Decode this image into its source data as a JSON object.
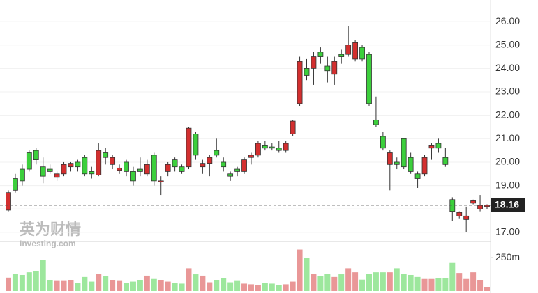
{
  "chart_data": {
    "type": "candlestick",
    "watermark": {
      "title": "英为财情",
      "subtitle": "Investing.com"
    },
    "open": [
      17.95,
      19.3,
      19.7,
      20.4,
      20.5,
      19.8,
      19.7,
      19.35,
      19.5,
      19.8,
      20.0,
      20.2,
      19.6,
      19.45,
      20.4,
      19.9,
      19.65,
      20.0,
      19.6,
      19.7,
      19.5,
      20.3,
      19.15,
      19.6,
      20.1,
      19.8,
      19.8,
      21.2,
      19.8,
      19.95,
      20.5,
      20.0,
      19.5,
      19.7,
      19.6,
      20.2,
      20.3,
      20.7,
      20.65,
      20.6,
      20.5,
      21.2,
      22.5,
      24.0,
      24.0,
      24.7,
      24.1,
      23.75,
      24.6,
      24.6,
      24.4,
      24.9,
      24.6,
      21.8,
      21.1,
      19.9,
      20.0,
      21.0,
      20.2,
      19.5,
      19.5,
      20.6,
      20.8,
      20.2,
      18.4,
      17.7,
      17.55,
      18.25,
      18.0,
      18.1
    ],
    "high": [
      18.8,
      19.5,
      19.9,
      20.5,
      20.6,
      20.2,
      19.9,
      19.6,
      20.0,
      20.0,
      20.1,
      20.3,
      19.8,
      20.8,
      20.6,
      20.3,
      19.9,
      20.1,
      19.8,
      20.2,
      20.1,
      20.4,
      19.4,
      20.0,
      20.2,
      19.9,
      21.5,
      21.3,
      20.1,
      20.3,
      21.0,
      20.2,
      19.6,
      19.8,
      20.2,
      20.4,
      20.9,
      20.9,
      20.8,
      20.9,
      20.9,
      21.8,
      24.5,
      24.4,
      24.7,
      24.9,
      24.5,
      24.5,
      24.8,
      25.8,
      25.2,
      25.0,
      24.7,
      22.8,
      21.3,
      20.5,
      20.2,
      21.0,
      20.4,
      19.6,
      20.3,
      20.8,
      21.0,
      20.6,
      18.5,
      17.9,
      18.1,
      18.4,
      18.6,
      18.2
    ],
    "low": [
      17.9,
      18.7,
      19.0,
      19.6,
      19.9,
      19.1,
      19.5,
      19.2,
      19.4,
      19.6,
      19.6,
      19.4,
      19.3,
      19.4,
      19.9,
      19.7,
      19.5,
      19.4,
      19.0,
      19.4,
      19.4,
      19.0,
      18.6,
      19.4,
      19.6,
      19.5,
      19.7,
      20.1,
      19.5,
      19.4,
      20.2,
      19.6,
      19.2,
      19.4,
      19.5,
      19.9,
      20.2,
      20.5,
      20.5,
      20.4,
      20.4,
      21.1,
      22.4,
      23.5,
      23.3,
      24.2,
      23.4,
      23.3,
      24.2,
      24.5,
      24.3,
      24.3,
      22.4,
      21.5,
      20.5,
      18.8,
      19.7,
      19.7,
      19.5,
      18.9,
      19.4,
      20.1,
      20.4,
      19.8,
      17.5,
      17.6,
      17.0,
      18.2,
      17.9,
      18.0
    ],
    "close": [
      18.7,
      18.8,
      19.2,
      19.7,
      20.1,
      19.4,
      19.6,
      19.5,
      19.9,
      19.95,
      19.8,
      19.5,
      19.5,
      20.5,
      20.2,
      20.2,
      19.75,
      19.6,
      19.2,
      19.6,
      19.9,
      19.2,
      19.2,
      19.9,
      19.8,
      19.6,
      21.45,
      20.3,
      19.95,
      20.2,
      20.3,
      19.8,
      19.4,
      19.6,
      20.1,
      20.3,
      20.8,
      20.6,
      20.6,
      20.5,
      20.8,
      21.75,
      24.3,
      23.7,
      24.5,
      24.5,
      23.9,
      24.3,
      24.5,
      25.0,
      25.1,
      24.4,
      22.5,
      21.6,
      20.6,
      20.4,
      19.9,
      19.8,
      19.6,
      19.3,
      20.2,
      20.7,
      20.6,
      19.9,
      17.9,
      17.85,
      17.7,
      18.35,
      18.15,
      18.16
    ],
    "volume": [
      100,
      130,
      120,
      140,
      150,
      230,
      80,
      75,
      75,
      80,
      60,
      105,
      70,
      130,
      110,
      80,
      75,
      60,
      70,
      80,
      115,
      90,
      80,
      70,
      60,
      55,
      170,
      125,
      115,
      65,
      80,
      95,
      65,
      75,
      55,
      50,
      45,
      60,
      55,
      45,
      50,
      70,
      310,
      250,
      130,
      110,
      130,
      105,
      125,
      170,
      140,
      85,
      130,
      140,
      140,
      140,
      170,
      130,
      120,
      105,
      90,
      90,
      95,
      95,
      210,
      135,
      90,
      140,
      80,
      30
    ],
    "up_color": "#d32f2f",
    "down_color": "#3ccf3c",
    "ylim": [
      16.64,
      26.27
    ],
    "yticks": [
      {
        "value": 17,
        "label": "17.00"
      },
      {
        "value": 18,
        "label": "18.00"
      },
      {
        "value": 19,
        "label": "19.00"
      },
      {
        "value": 20,
        "label": "20.00"
      },
      {
        "value": 21,
        "label": "21.00"
      },
      {
        "value": 22,
        "label": "22.00"
      },
      {
        "value": 23,
        "label": "23.00"
      },
      {
        "value": 24,
        "label": "24.00"
      },
      {
        "value": 25,
        "label": "25.00"
      },
      {
        "value": 26,
        "label": "26.00"
      }
    ],
    "y2lim": [
      0,
      365
    ],
    "y2ticks": [
      {
        "value": 250,
        "label": "250m"
      }
    ],
    "last_price": 18.16,
    "grid": true
  }
}
